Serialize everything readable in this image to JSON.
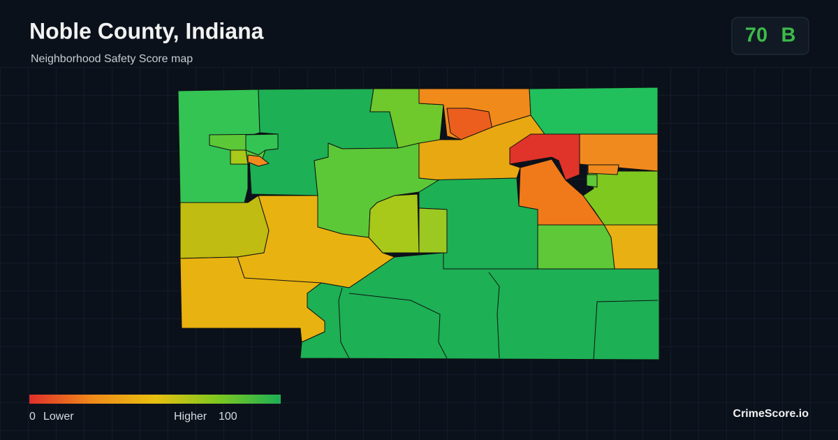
{
  "header": {
    "title": "Noble County, Indiana",
    "subtitle": "Neighborhood Safety Score map"
  },
  "score": {
    "value": 70,
    "grade": "B"
  },
  "legend": {
    "min": 0,
    "min_label": "Lower",
    "max_label": "Higher",
    "max": 100
  },
  "footer": {
    "brand": "CrimeScore.io"
  }
}
